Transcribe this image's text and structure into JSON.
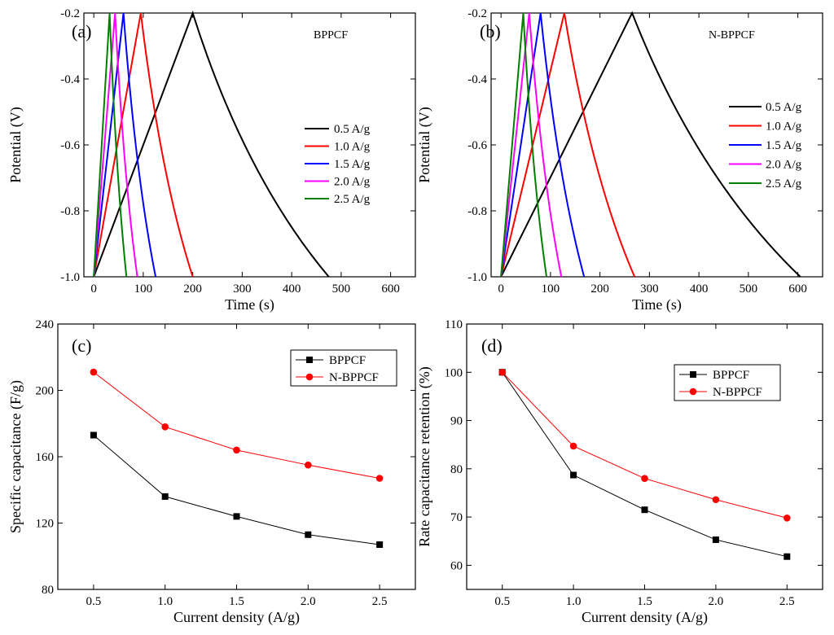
{
  "chart_data": [
    {
      "panel": "(a)",
      "type": "line",
      "annotation": "BPPCF",
      "xlabel": "Time (s)",
      "ylabel": "Potential (V)",
      "xlim": [
        -20,
        650
      ],
      "ylim": [
        -1.0,
        -0.2
      ],
      "xticks": [
        0,
        100,
        200,
        300,
        400,
        500,
        600
      ],
      "xtick_labels": [
        "0",
        "100",
        "200",
        "300",
        "400",
        "500",
        "600"
      ],
      "yticks": [
        -1.0,
        -0.8,
        -0.6,
        -0.4,
        -0.2
      ],
      "ytick_labels": [
        "-1.0",
        "-0.8",
        "-0.6",
        "-0.4",
        "-0.2"
      ],
      "legend_position": "center-right",
      "series": [
        {
          "name": "0.5 A/g",
          "color": "#000000",
          "x": [
            0,
            200,
            475
          ],
          "y": [
            -1.0,
            -0.2,
            -1.0
          ]
        },
        {
          "name": "1.0 A/g",
          "color": "#ff0000",
          "x": [
            0,
            95,
            200
          ],
          "y": [
            -1.0,
            -0.2,
            -1.0
          ]
        },
        {
          "name": "1.5 A/g",
          "color": "#0000ff",
          "x": [
            0,
            60,
            125
          ],
          "y": [
            -1.0,
            -0.2,
            -1.0
          ]
        },
        {
          "name": "2.0 A/g",
          "color": "#ff00ff",
          "x": [
            0,
            43,
            88
          ],
          "y": [
            -1.0,
            -0.2,
            -1.0
          ]
        },
        {
          "name": "2.5 A/g",
          "color": "#008000",
          "x": [
            0,
            32,
            66
          ],
          "y": [
            -1.0,
            -0.2,
            -1.0
          ]
        }
      ]
    },
    {
      "panel": "(b)",
      "type": "line",
      "annotation": "N-BPPCF",
      "xlabel": "Time (s)",
      "ylabel": "Potential (V)",
      "xlim": [
        -20,
        650
      ],
      "ylim": [
        -1.0,
        -0.2
      ],
      "xticks": [
        0,
        100,
        200,
        300,
        400,
        500,
        600
      ],
      "xtick_labels": [
        "0",
        "100",
        "200",
        "300",
        "400",
        "500",
        "600"
      ],
      "yticks": [
        -1.0,
        -0.8,
        -0.6,
        -0.4,
        -0.2
      ],
      "ytick_labels": [
        "-1.0",
        "-0.8",
        "-0.6",
        "-0.4",
        "-0.2"
      ],
      "legend_position": "right",
      "series": [
        {
          "name": "0.5 A/g",
          "color": "#000000",
          "x": [
            0,
            265,
            605
          ],
          "y": [
            -1.0,
            -0.2,
            -1.0
          ]
        },
        {
          "name": "1.0 A/g",
          "color": "#ff0000",
          "x": [
            0,
            128,
            270
          ],
          "y": [
            -1.0,
            -0.2,
            -1.0
          ]
        },
        {
          "name": "1.5 A/g",
          "color": "#0000ff",
          "x": [
            0,
            80,
            168
          ],
          "y": [
            -1.0,
            -0.2,
            -1.0
          ]
        },
        {
          "name": "2.0 A/g",
          "color": "#ff00ff",
          "x": [
            0,
            57,
            122
          ],
          "y": [
            -1.0,
            -0.2,
            -1.0
          ]
        },
        {
          "name": "2.5 A/g",
          "color": "#008000",
          "x": [
            0,
            45,
            92
          ],
          "y": [
            -1.0,
            -0.2,
            -1.0
          ]
        }
      ]
    },
    {
      "panel": "(c)",
      "type": "line",
      "xlabel": "Current density (A/g)",
      "ylabel": "Specific capacitance (F/g)",
      "xlim": [
        0.25,
        2.75
      ],
      "ylim": [
        80,
        240
      ],
      "xticks": [
        0.5,
        1.0,
        1.5,
        2.0,
        2.5
      ],
      "xtick_labels": [
        "0.5",
        "1.0",
        "1.5",
        "2.0",
        "2.5"
      ],
      "yticks": [
        80,
        120,
        160,
        200,
        240
      ],
      "ytick_labels": [
        "80",
        "120",
        "160",
        "200",
        "240"
      ],
      "legend_position": "top-right",
      "series": [
        {
          "name": "BPPCF",
          "color": "#000000",
          "marker": "square",
          "x": [
            0.5,
            1.0,
            1.5,
            2.0,
            2.5
          ],
          "y": [
            173,
            136,
            124,
            113,
            107
          ]
        },
        {
          "name": "N-BPPCF",
          "color": "#ff0000",
          "marker": "circle",
          "x": [
            0.5,
            1.0,
            1.5,
            2.0,
            2.5
          ],
          "y": [
            211,
            178,
            164,
            155,
            147
          ]
        }
      ]
    },
    {
      "panel": "(d)",
      "type": "line",
      "xlabel": "Current density (A/g)",
      "ylabel": "Rate capacitance retention (%)",
      "xlim": [
        0.25,
        2.75
      ],
      "ylim": [
        55,
        110
      ],
      "xticks": [
        0.5,
        1.0,
        1.5,
        2.0,
        2.5
      ],
      "xtick_labels": [
        "0.5",
        "1.0",
        "1.5",
        "2.0",
        "2.5"
      ],
      "yticks": [
        60,
        70,
        80,
        90,
        100,
        110
      ],
      "ytick_labels": [
        "60",
        "70",
        "80",
        "90",
        "100",
        "110"
      ],
      "legend_position": "top-right",
      "series": [
        {
          "name": "BPPCF",
          "color": "#000000",
          "marker": "square",
          "x": [
            0.5,
            1.0,
            1.5,
            2.0,
            2.5
          ],
          "y": [
            100,
            78.7,
            71.5,
            65.3,
            61.8
          ]
        },
        {
          "name": "N-BPPCF",
          "color": "#ff0000",
          "marker": "circle",
          "x": [
            0.5,
            1.0,
            1.5,
            2.0,
            2.5
          ],
          "y": [
            100,
            84.7,
            78.0,
            73.6,
            69.8
          ]
        }
      ]
    }
  ]
}
